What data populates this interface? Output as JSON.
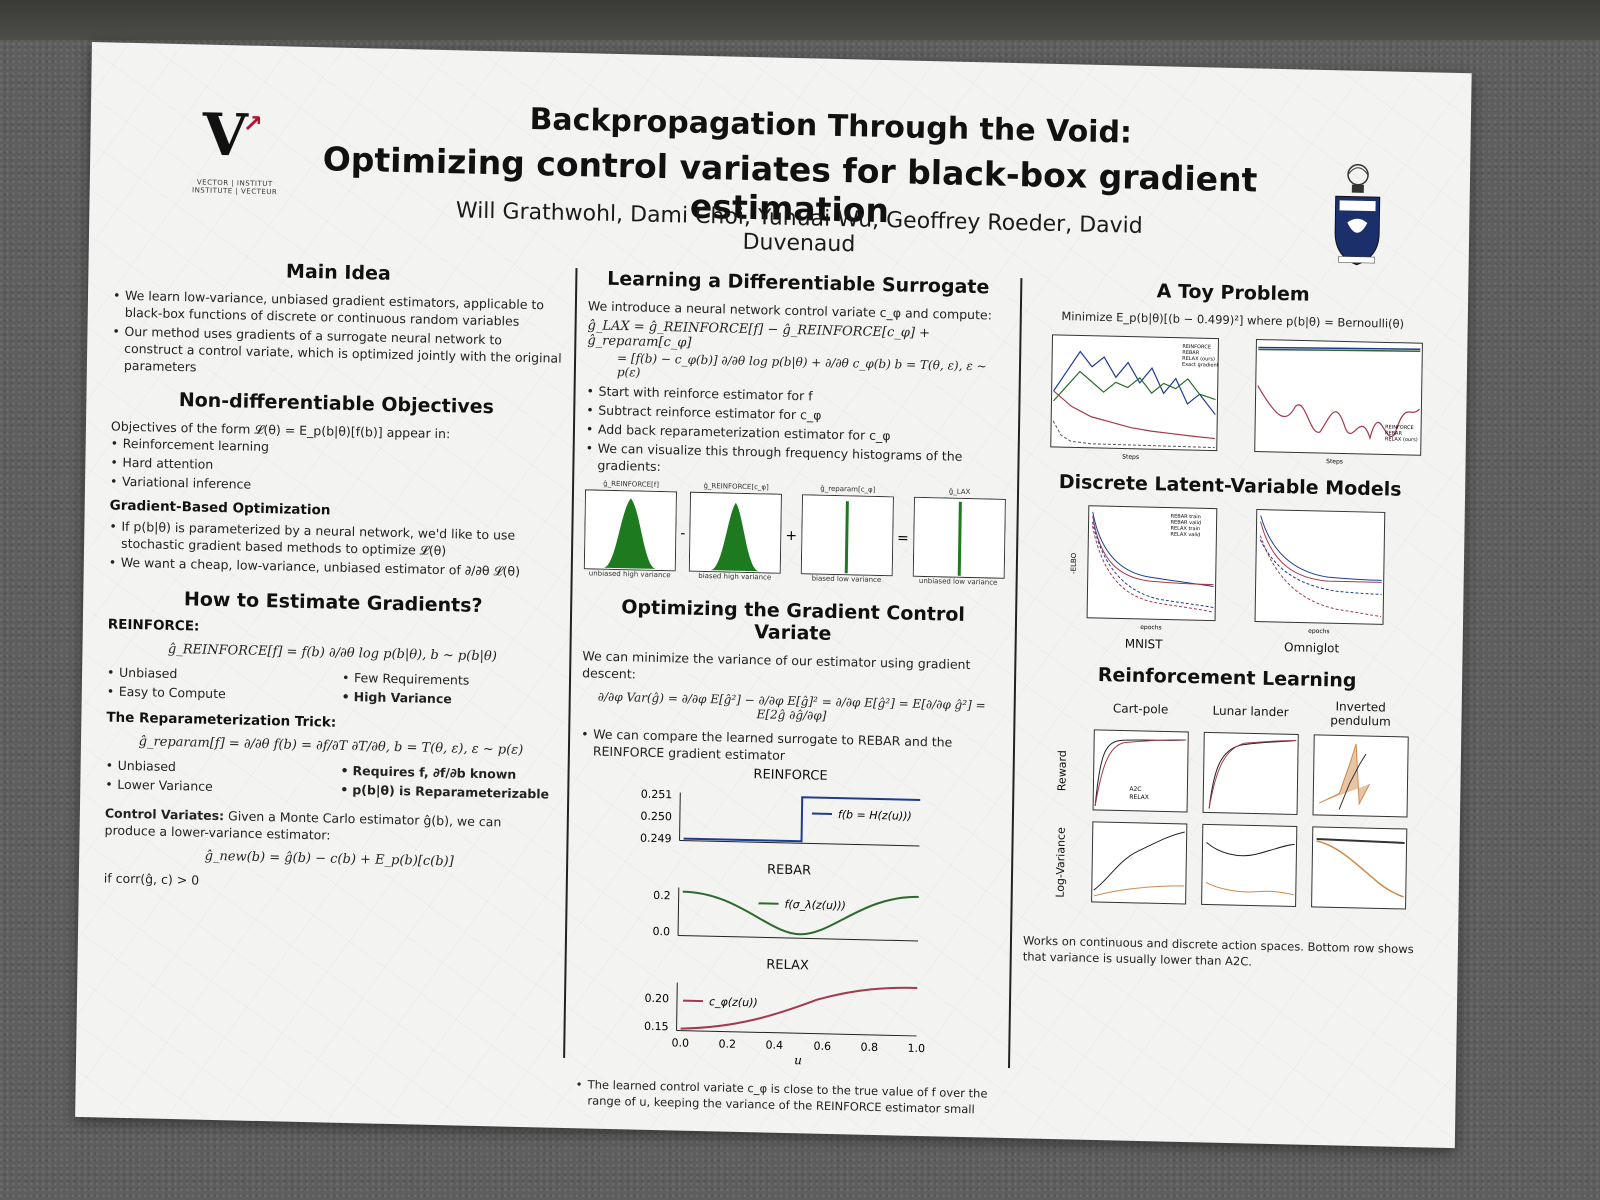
{
  "title_line1": "Backpropagation Through the Void:",
  "title_line2": "Optimizing control variates for black-box gradient estimation",
  "authors": "Will Grathwohl, Dami Choi, Yuhuai Wu, Geoffrey Roeder, David Duvenaud",
  "logo": {
    "line1": "VECTOR | INSTITUT",
    "line2": "INSTITUTE | VECTEUR"
  },
  "main_idea": {
    "heading": "Main Idea",
    "bullets": [
      "We learn low-variance, unbiased gradient estimators, applicable to black-box functions of discrete or continuous random variables",
      "Our method uses gradients of a surrogate neural network to construct a control variate, which is optimized jointly with the original parameters"
    ]
  },
  "non_diff": {
    "heading": "Non-differentiable Objectives",
    "intro": "Objectives of the form 𝓛(θ) = E_p(b|θ)[f(b)] appear in:",
    "bullets": [
      "Reinforcement learning",
      "Hard attention",
      "Variational inference"
    ]
  },
  "grad_opt": {
    "heading": "Gradient-Based Optimization",
    "bullets": [
      "If p(b|θ) is parameterized by a neural network, we'd like to use stochastic gradient based methods to optimize 𝓛(θ)",
      "We want a cheap, low-variance, unbiased estimator of ∂/∂θ 𝓛(θ)"
    ]
  },
  "estimate": {
    "heading": "How to Estimate Gradients?",
    "reinforce_label": "REINFORCE:",
    "reinforce_eq": "ĝ_REINFORCE[f] = f(b) ∂/∂θ log p(b|θ),        b ~ p(b|θ)",
    "reinforce_left": [
      "Unbiased",
      "Easy to Compute"
    ],
    "reinforce_right": [
      "Few Requirements",
      "High Variance"
    ],
    "reparam_label": "The Reparameterization Trick:",
    "reparam_eq": "ĝ_reparam[f] = ∂/∂θ f(b) = ∂f/∂T ∂T/∂θ,        b = T(θ, ε), ε ~ p(ε)",
    "reparam_left": [
      "Unbiased",
      "Lower Variance"
    ],
    "reparam_right": [
      "Requires f, ∂f/∂b known",
      "p(b|θ) is Reparameterizable"
    ],
    "cv_label": "Control Variates:",
    "cv_text": "Given a Monte Carlo estimator ĝ(b), we can produce a lower-variance estimator:",
    "cv_eq": "ĝ_new(b) = ĝ(b) − c(b) + E_p(b)[c(b)]",
    "cv_cond": "if corr(ĝ, c) > 0"
  },
  "surrogate": {
    "heading": "Learning a Differentiable Surrogate",
    "intro": "We introduce a neural network control variate c_φ and compute:",
    "eq1": "ĝ_LAX = ĝ_REINFORCE[f] − ĝ_REINFORCE[c_φ] + ĝ_reparam[c_φ]",
    "eq2": "= [f(b) − c_φ(b)] ∂/∂θ log p(b|θ) + ∂/∂θ c_φ(b)        b = T(θ, ε), ε ~ p(ε)",
    "bullets": [
      "Start with reinforce estimator for f",
      "Subtract reinforce estimator for c_φ",
      "Add back reparameterization estimator for c_φ",
      "We can visualize this through frequency histograms of the gradients:"
    ],
    "hist_titles": [
      "ĝ_REINFORCE[f]",
      "ĝ_REINFORCE[c_φ]",
      "ĝ_reparam[c_φ]",
      "ĝ_LAX"
    ],
    "hist_captions": [
      "unbiased high variance",
      "biased high variance",
      "biased low variance",
      "unbiased low variance"
    ],
    "operators": [
      "-",
      "+",
      "="
    ]
  },
  "optimizing": {
    "heading": "Optimizing the Gradient Control Variate",
    "intro": "We can minimize the variance of our estimator using gradient descent:",
    "eq": "∂/∂φ Var(ĝ) = ∂/∂φ E[ĝ²] − ∂/∂φ E[ĝ]² = ∂/∂φ E[ĝ²] = E[∂/∂φ ĝ²] = E[2ĝ ∂ĝ/∂φ]",
    "bullet": "We can compare the learned surrogate to REBAR and the REINFORCE gradient estimator",
    "charts": [
      {
        "title": "REINFORCE",
        "legend": "f(b = H(z(u)))",
        "yticks": [
          "0.251",
          "0.250",
          "0.249"
        ],
        "color": "#1f3a93"
      },
      {
        "title": "REBAR",
        "legend": "f(σ_λ(z(u)))",
        "yticks": [
          "0.2",
          "0.0"
        ],
        "color": "#2d6b2d"
      },
      {
        "title": "RELAX",
        "legend": "c_φ(z(u))",
        "yticks": [
          "0.20",
          "0.15"
        ],
        "color": "#a33a4a"
      }
    ],
    "xticks": [
      "0.0",
      "0.2",
      "0.4",
      "0.6",
      "0.8",
      "1.0"
    ],
    "xlabel": "u",
    "footer": "The learned control variate c_φ is close to the true value of f over the range of u, keeping the variance of the REINFORCE estimator small"
  },
  "toy": {
    "heading": "A Toy Problem",
    "subtitle": "Minimize E_p(b|θ)[(b − 0.499)²] where p(b|θ) = Bernoulli(θ)",
    "legend_left": [
      "REINFORCE",
      "REBAR",
      "RELAX (ours)",
      "Exact gradient"
    ],
    "legend_right": [
      "REINFORCE",
      "REBAR",
      "RELAX (ours)"
    ],
    "xlabel": "Steps"
  },
  "discrete": {
    "heading": "Discrete Latent-Variable Models",
    "legend": [
      "REBAR train",
      "REBAR valid",
      "RELAX train",
      "RELAX valid"
    ],
    "ylabel": "-ELBO",
    "xlabel": "epochs",
    "captions": [
      "MNIST",
      "Omniglot"
    ]
  },
  "rl": {
    "heading": "Reinforcement Learning",
    "env_titles": [
      "Cart-pole",
      "Lunar lander",
      "Inverted pendulum"
    ],
    "row_labels": [
      "Reward",
      "Log-Variance"
    ],
    "legend": [
      "A2C",
      "RELAX"
    ],
    "footer": "Works on continuous and discrete action spaces. Bottom row shows that variance is usually lower than A2C."
  },
  "colors": {
    "reinforce": "#1f3a93",
    "rebar": "#2d6b2d",
    "relax": "#a33a4a",
    "hist": "#1e7a1e",
    "a2c": "#d08a4a"
  }
}
